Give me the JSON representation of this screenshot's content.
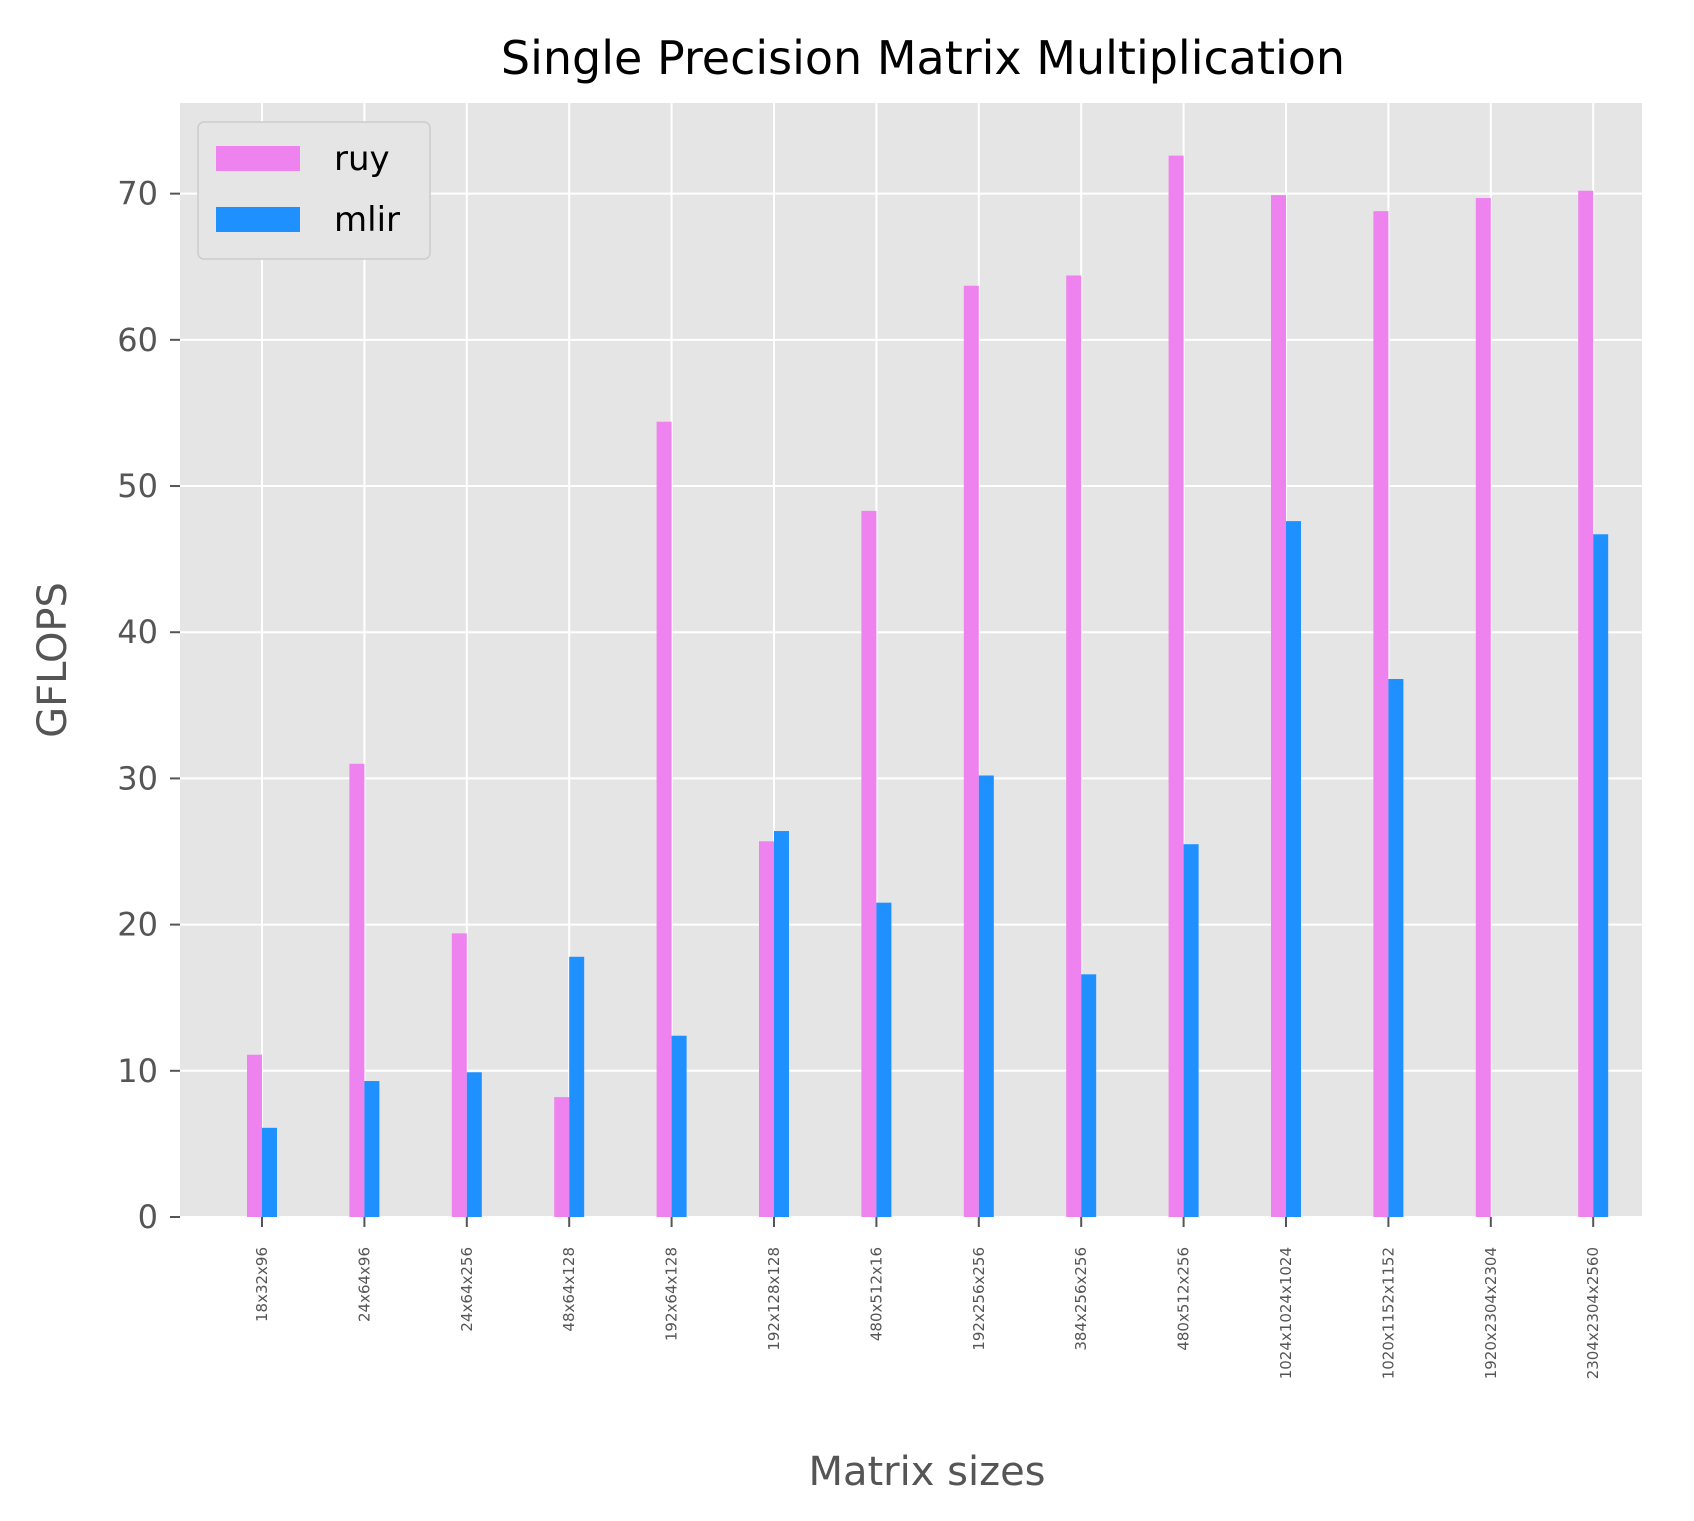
{
  "chart_data": {
    "type": "bar",
    "title": "Single Precision Matrix Multiplication",
    "xlabel": "Matrix sizes",
    "ylabel": "GFLOPS",
    "categories": [
      "18x32x96",
      "24x64x96",
      "24x64x256",
      "48x64x128",
      "192x64x128",
      "192x128x128",
      "480x512x16",
      "192x256x256",
      "384x256x256",
      "480x512x256",
      "1024x1024x1024",
      "1020x1152x1152",
      "1920x2304x2304",
      "2304x2304x2560"
    ],
    "series": [
      {
        "name": "ruy",
        "color": "#ee82ee",
        "values": [
          11.1,
          31.0,
          19.4,
          8.2,
          54.4,
          25.7,
          48.3,
          63.7,
          64.4,
          72.6,
          69.9,
          68.8,
          69.7,
          70.2
        ]
      },
      {
        "name": "mlir",
        "color": "#1e90ff",
        "values": [
          6.1,
          9.3,
          9.9,
          17.8,
          12.4,
          26.4,
          21.5,
          30.2,
          16.6,
          25.5,
          47.6,
          36.8,
          0,
          46.7
        ]
      }
    ],
    "ylim": [
      0,
      76.2
    ],
    "yticks": [
      0,
      10,
      20,
      30,
      40,
      50,
      60,
      70
    ],
    "grid": true,
    "legend_position": "top-left",
    "background": "#e5e5e5"
  }
}
